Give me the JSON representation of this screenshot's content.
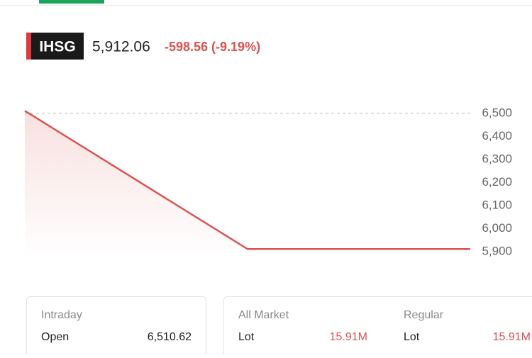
{
  "header": {
    "ticker": "IHSG",
    "price": "5,912.06",
    "change": "-598.56 (-9.19%)"
  },
  "chart_data": {
    "type": "line",
    "categories": [
      null,
      null,
      null
    ],
    "series": [
      {
        "color": "#d9534f",
        "values": [
          6510.62,
          5912.06,
          5912.06
        ]
      }
    ],
    "ylim": [
      5870,
      6530
    ],
    "yticks": [
      {
        "value": 6500,
        "label": "6,500"
      },
      {
        "value": 6400,
        "label": "6,400"
      },
      {
        "value": 6300,
        "label": "6,300"
      },
      {
        "value": 6200,
        "label": "6,200"
      },
      {
        "value": 6100,
        "label": "6,100"
      },
      {
        "value": 6000,
        "label": "6,000"
      },
      {
        "value": 5900,
        "label": "5,900"
      }
    ],
    "reference_line": 6500
  },
  "cards": [
    {
      "title": "Intraday",
      "rows": [
        [
          "Open",
          "6,510.62"
        ]
      ]
    },
    {
      "title": "All Market",
      "rows": [
        [
          "Lot",
          "15.91M"
        ]
      ]
    },
    {
      "title": "Regular",
      "rows": [
        [
          "Lot",
          "15.91M"
        ]
      ]
    }
  ]
}
